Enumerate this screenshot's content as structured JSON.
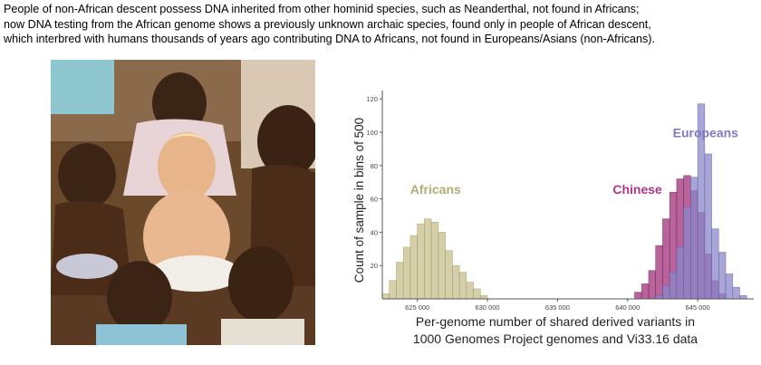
{
  "caption": {
    "line1": "People of non-African descent possess DNA inherited from other hominid species, such as Neanderthal, not found in Africans;",
    "line2": "now DNA testing from the African genome shows a previously unknown archaic species, found only in people of African descent,",
    "line3": "which interbred with humans thousands of years ago contributing DNA to Africans, not found in Europeans/Asians (non-Africans)."
  },
  "photo": {
    "description_icon": "group-of-children-photo-icon"
  },
  "chart_data": {
    "type": "histogram",
    "xlabel_line1": "Per-genome number of shared derived variants in",
    "xlabel_line2": "1000 Genomes Project genomes and Vi33.16 data",
    "ylabel": "Count of sample in bins of 500",
    "xlim": [
      622500,
      649000
    ],
    "ylim": [
      0,
      125
    ],
    "xticks": [
      625000,
      630000,
      635000,
      640000,
      645000
    ],
    "xtick_labels": [
      "625 000",
      "630 000",
      "635 000",
      "640 000",
      "645 000"
    ],
    "yticks": [
      20,
      40,
      60,
      80,
      100,
      120
    ],
    "ytick_labels": [
      "20",
      "40",
      "60",
      "80",
      "100",
      "120"
    ],
    "bin_width": 500,
    "series": [
      {
        "name": "Africans",
        "color": "#c5bf8b",
        "stroke": "#9a9460",
        "bin_starts": [
          622500,
          623000,
          623500,
          624000,
          624500,
          625000,
          625500,
          626000,
          626500,
          627000,
          627500,
          628000,
          628500,
          629000,
          629500,
          630000
        ],
        "values": [
          3,
          11,
          22,
          31,
          38,
          45,
          48,
          46,
          40,
          29,
          20,
          16,
          10,
          6,
          2,
          0
        ]
      },
      {
        "name": "Chinese",
        "color": "#a0307a",
        "stroke": "#6e1f55",
        "bin_starts": [
          640500,
          641000,
          641500,
          642000,
          642500,
          643000,
          643500,
          644000,
          644500,
          645000,
          645500,
          646000,
          646500
        ],
        "values": [
          4,
          9,
          17,
          32,
          48,
          64,
          72,
          74,
          65,
          52,
          27,
          11,
          3
        ]
      },
      {
        "name": "Europeans",
        "color": "#8b87c9",
        "stroke": "#5f5a9e",
        "bin_starts": [
          642000,
          642500,
          643000,
          643500,
          644000,
          644500,
          645000,
          645500,
          646000,
          646500,
          647000,
          647500,
          648000
        ],
        "values": [
          2,
          8,
          16,
          31,
          55,
          73,
          117,
          87,
          42,
          28,
          15,
          7,
          2
        ]
      }
    ],
    "annotations": [
      {
        "text": "Africans",
        "color": "#b3ac72",
        "x": 626300,
        "y": 63
      },
      {
        "text": "Chinese",
        "color": "#b0348a",
        "x": 640700,
        "y": 63
      },
      {
        "text": "Europeans",
        "color": "#7f7ac0",
        "x": 647900,
        "y": 97
      }
    ]
  }
}
